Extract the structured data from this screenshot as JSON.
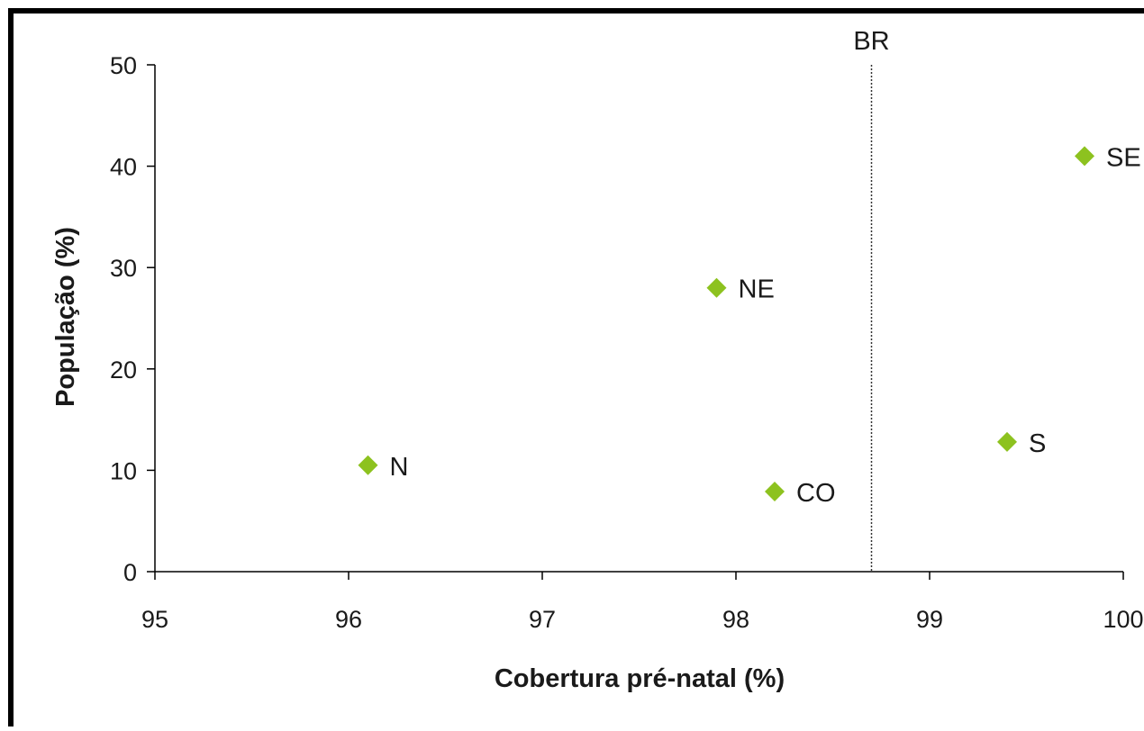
{
  "chart_data": {
    "type": "scatter",
    "title": "",
    "xlabel": "Cobertura pré-natal (%)",
    "ylabel": "População (%)",
    "xlim": [
      95,
      100
    ],
    "ylim": [
      0,
      50
    ],
    "x_ticks": [
      "95",
      "96",
      "97",
      "98",
      "99",
      "100"
    ],
    "y_ticks": [
      "0",
      "10",
      "20",
      "30",
      "40",
      "50"
    ],
    "grid": false,
    "legend": "none",
    "marker": "diamond",
    "marker_color": "#8dc21f",
    "points": [
      {
        "label": "N",
        "x": 96.1,
        "y": 10.5
      },
      {
        "label": "NE",
        "x": 97.9,
        "y": 28.0
      },
      {
        "label": "CO",
        "x": 98.2,
        "y": 7.9
      },
      {
        "label": "S",
        "x": 99.4,
        "y": 12.8
      },
      {
        "label": "SE",
        "x": 99.8,
        "y": 41.0
      }
    ],
    "reference_line": {
      "label": "BR",
      "x": 98.7,
      "style": "dotted"
    }
  }
}
